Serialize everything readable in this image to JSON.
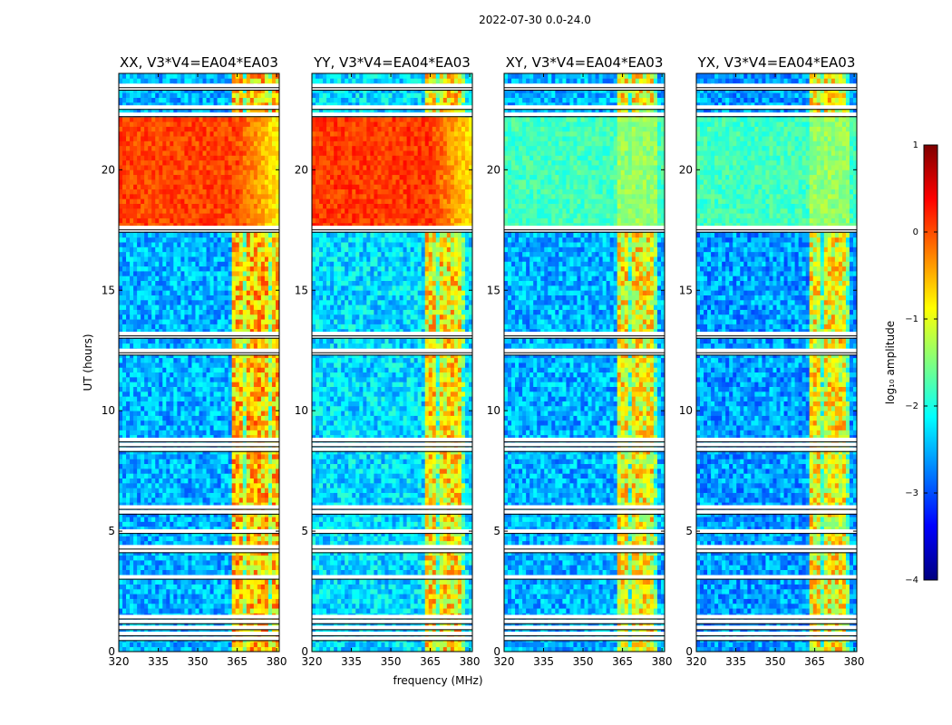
{
  "figure": {
    "suptitle": "2022-07-30 0.0-24.0"
  },
  "chart_data": {
    "type": "heatmap",
    "suptitle": "2022-07-30 0.0-24.0",
    "xlabel": "frequency (MHz)",
    "ylabel": "UT (hours)",
    "xlim": [
      320,
      381
    ],
    "ylim": [
      0,
      24
    ],
    "xticks": [
      320,
      335,
      350,
      365,
      380
    ],
    "yticks": [
      0,
      5,
      10,
      15,
      20
    ],
    "colorbar": {
      "label": "log₁₀ amplitude",
      "vmin": -4,
      "vmax": 1,
      "ticks": [
        -4,
        -3,
        -2,
        -1,
        0,
        1
      ],
      "tick_labels": [
        "−4",
        "−3",
        "−2",
        "−1",
        "0",
        "1"
      ],
      "colormap": "jet"
    },
    "panels": [
      {
        "title": "XX, V3*V4=EA04*EA03",
        "level_18_22h": "high (~0)",
        "level_other": "low (~-2.5)",
        "rfi_band_mhz": [
          363,
          381
        ]
      },
      {
        "title": "YY, V3*V4=EA04*EA03",
        "level_18_22h": "high (~0)",
        "level_other": "low (~-2.3)",
        "rfi_band_mhz": [
          363,
          378
        ]
      },
      {
        "title": "XY, V3*V4=EA04*EA03",
        "level_18_22h": "medium (~-1.8)",
        "level_other": "low (~-2.5)",
        "rfi_band_mhz": [
          363,
          378
        ]
      },
      {
        "title": "YX, V3*V4=EA04*EA03",
        "level_18_22h": "medium (~-1.8)",
        "level_other": "low (~-2.5)",
        "rfi_band_mhz": [
          363,
          378
        ]
      }
    ],
    "flagged_hours": [
      0.55,
      0.75,
      1.0,
      1.25,
      1.45,
      3.1,
      4.2,
      4.35,
      5.0,
      5.8,
      6.0,
      8.4,
      8.6,
      8.8,
      12.4,
      12.5,
      13.1,
      13.2,
      17.5,
      17.6,
      22.3,
      22.6,
      23.4,
      23.5
    ]
  }
}
